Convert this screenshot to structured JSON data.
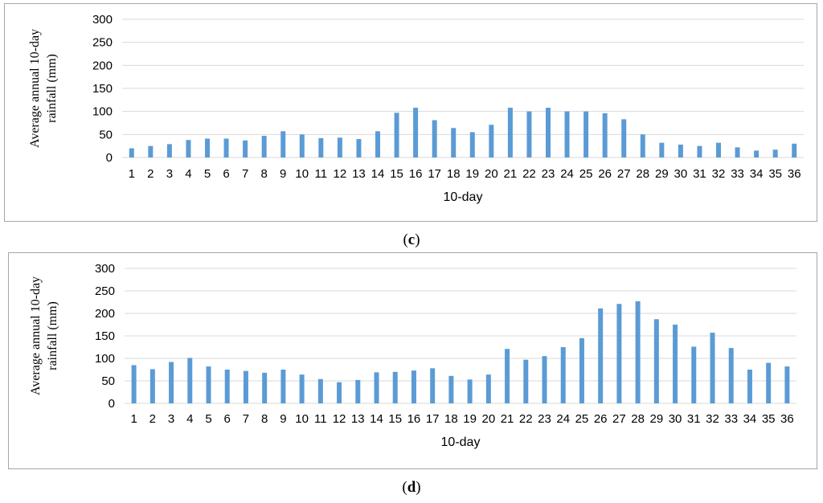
{
  "colors": {
    "bar": "#5b9bd5",
    "grid": "#d9d9d9",
    "frame": "#a6a6a6"
  },
  "captions": {
    "c": "c",
    "d": "d"
  },
  "chart_data": [
    {
      "id": "c",
      "type": "bar",
      "xlabel": "10-day",
      "ylabel": "Average annual 10-day rainfall (mm)",
      "ylabel_lines": [
        "Average annual 10-day",
        "rainfall (mm)"
      ],
      "ylim": [
        0,
        300
      ],
      "yticks": [
        0,
        50,
        100,
        150,
        200,
        250,
        300
      ],
      "grid": true,
      "legend": "none",
      "categories": [
        "1",
        "2",
        "3",
        "4",
        "5",
        "6",
        "7",
        "8",
        "9",
        "10",
        "11",
        "12",
        "13",
        "14",
        "15",
        "16",
        "17",
        "18",
        "19",
        "20",
        "21",
        "22",
        "23",
        "24",
        "25",
        "26",
        "27",
        "28",
        "29",
        "30",
        "31",
        "32",
        "33",
        "34",
        "35",
        "36"
      ],
      "values": [
        20,
        25,
        29,
        38,
        41,
        41,
        37,
        47,
        57,
        50,
        42,
        43,
        40,
        57,
        97,
        108,
        81,
        64,
        55,
        71,
        108,
        100,
        108,
        100,
        100,
        96,
        83,
        50,
        32,
        28,
        25,
        32,
        22,
        15,
        17,
        30
      ]
    },
    {
      "id": "d",
      "type": "bar",
      "xlabel": "10-day",
      "ylabel": "Average annual 10-day rainfall (mm)",
      "ylabel_lines": [
        "Average annual 10-day",
        "rainfall (mm)"
      ],
      "ylim": [
        0,
        300
      ],
      "yticks": [
        0,
        50,
        100,
        150,
        200,
        250,
        300
      ],
      "grid": true,
      "legend": "none",
      "categories": [
        "1",
        "2",
        "3",
        "4",
        "5",
        "6",
        "7",
        "8",
        "9",
        "10",
        "11",
        "12",
        "13",
        "14",
        "15",
        "16",
        "17",
        "18",
        "19",
        "20",
        "21",
        "22",
        "23",
        "24",
        "25",
        "26",
        "27",
        "28",
        "29",
        "30",
        "31",
        "32",
        "33",
        "34",
        "35",
        "36"
      ],
      "values": [
        85,
        76,
        92,
        101,
        82,
        75,
        72,
        68,
        75,
        64,
        54,
        47,
        52,
        69,
        70,
        73,
        78,
        61,
        53,
        64,
        121,
        97,
        105,
        125,
        145,
        211,
        221,
        227,
        187,
        175,
        126,
        157,
        123,
        75,
        90,
        82
      ]
    }
  ]
}
